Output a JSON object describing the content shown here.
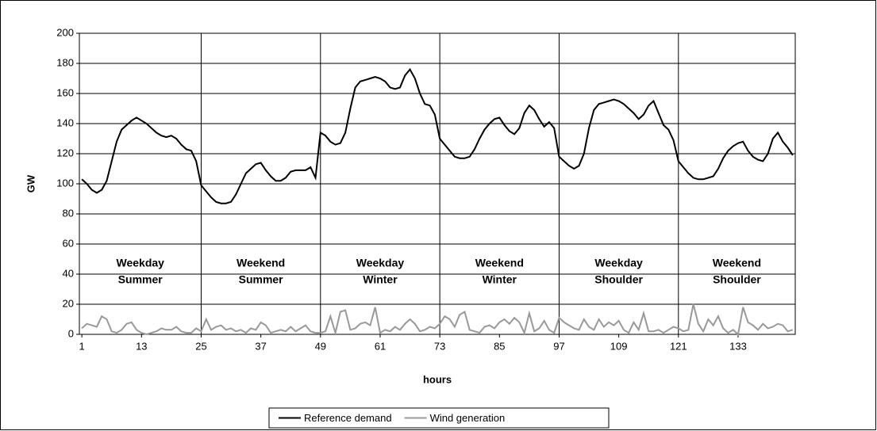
{
  "chart_data": {
    "type": "line",
    "xlabel": "hours",
    "ylabel": "GW",
    "x": [
      1,
      2,
      3,
      4,
      5,
      6,
      7,
      8,
      9,
      10,
      11,
      12,
      13,
      14,
      15,
      16,
      17,
      18,
      19,
      20,
      21,
      22,
      23,
      24,
      25,
      26,
      27,
      28,
      29,
      30,
      31,
      32,
      33,
      34,
      35,
      36,
      37,
      38,
      39,
      40,
      41,
      42,
      43,
      44,
      45,
      46,
      47,
      48,
      49,
      50,
      51,
      52,
      53,
      54,
      55,
      56,
      57,
      58,
      59,
      60,
      61,
      62,
      63,
      64,
      65,
      66,
      67,
      68,
      69,
      70,
      71,
      72,
      73,
      74,
      75,
      76,
      77,
      78,
      79,
      80,
      81,
      82,
      83,
      84,
      85,
      86,
      87,
      88,
      89,
      90,
      91,
      92,
      93,
      94,
      95,
      96,
      97,
      98,
      99,
      100,
      101,
      102,
      103,
      104,
      105,
      106,
      107,
      108,
      109,
      110,
      111,
      112,
      113,
      114,
      115,
      116,
      117,
      118,
      119,
      120,
      121,
      122,
      123,
      124,
      125,
      126,
      127,
      128,
      129,
      130,
      131,
      132,
      133,
      134,
      135,
      136,
      137,
      138,
      139,
      140,
      141,
      142,
      143,
      144
    ],
    "series": [
      {
        "name": "Reference demand",
        "color": "#000000",
        "values": [
          103,
          100,
          96,
          94,
          96,
          102,
          115,
          128,
          136,
          139,
          142,
          144,
          142,
          140,
          137,
          134,
          132,
          131,
          132,
          130,
          126,
          123,
          122,
          115,
          99,
          95,
          91,
          88,
          87,
          87,
          88,
          93,
          100,
          107,
          110,
          113,
          114,
          109,
          105,
          102,
          102,
          104,
          108,
          109,
          109,
          109,
          111,
          104,
          134,
          132,
          128,
          126,
          127,
          134,
          150,
          164,
          168,
          169,
          170,
          171,
          170,
          168,
          164,
          163,
          164,
          172,
          176,
          170,
          160,
          153,
          152,
          146,
          130,
          126,
          122,
          118,
          117,
          117,
          118,
          123,
          130,
          136,
          140,
          143,
          144,
          139,
          135,
          133,
          137,
          147,
          152,
          149,
          143,
          138,
          141,
          137,
          118,
          115,
          112,
          110,
          112,
          120,
          137,
          149,
          153,
          154,
          155,
          156,
          155,
          153,
          150,
          147,
          143,
          146,
          152,
          155,
          147,
          139,
          136,
          129,
          115,
          111,
          107,
          104,
          103,
          103,
          104,
          105,
          110,
          117,
          122,
          125,
          127,
          128,
          122,
          118,
          116,
          115,
          120,
          130,
          134,
          128,
          124,
          119
        ]
      },
      {
        "name": "Wind generation",
        "color": "#999999",
        "values": [
          4,
          7,
          6,
          5,
          12,
          10,
          2,
          1,
          3,
          7,
          8,
          3,
          1,
          0,
          1,
          2,
          4,
          3,
          3,
          5,
          2,
          1,
          1,
          4,
          2,
          10,
          3,
          5,
          6,
          3,
          4,
          2,
          3,
          1,
          4,
          3,
          8,
          6,
          1,
          2,
          3,
          2,
          5,
          2,
          4,
          6,
          2,
          1,
          1,
          2,
          12,
          1,
          15,
          16,
          3,
          4,
          7,
          8,
          6,
          18,
          1,
          3,
          2,
          5,
          3,
          7,
          10,
          7,
          2,
          3,
          5,
          4,
          7,
          12,
          10,
          5,
          13,
          15,
          3,
          2,
          1,
          5,
          6,
          4,
          8,
          10,
          7,
          11,
          8,
          1,
          14,
          2,
          4,
          9,
          3,
          1,
          11,
          8,
          6,
          4,
          3,
          10,
          5,
          3,
          10,
          5,
          8,
          6,
          9,
          3,
          1,
          8,
          3,
          14,
          2,
          2,
          3,
          1,
          3,
          5,
          4,
          2,
          3,
          20,
          7,
          2,
          10,
          6,
          12,
          4,
          1,
          3,
          0,
          18,
          8,
          6,
          3,
          7,
          4,
          5,
          7,
          6,
          2,
          3
        ]
      }
    ],
    "regions": [
      {
        "day": "Weekday",
        "season": "Summer",
        "start": 1
      },
      {
        "day": "Weekend",
        "season": "Summer",
        "start": 25
      },
      {
        "day": "Weekday",
        "season": "Winter",
        "start": 49
      },
      {
        "day": "Weekend",
        "season": "Winter",
        "start": 73
      },
      {
        "day": "Weekday",
        "season": "Shoulder",
        "start": 97
      },
      {
        "day": "Weekend",
        "season": "Shoulder",
        "start": 121
      }
    ],
    "xlim": [
      0.5,
      144.5
    ],
    "xticks": [
      1,
      13,
      25,
      37,
      49,
      61,
      73,
      85,
      97,
      109,
      121,
      133
    ],
    "ylim": [
      0,
      200
    ],
    "yticks": [
      0,
      20,
      40,
      60,
      80,
      100,
      120,
      140,
      160,
      180,
      200
    ],
    "grid": true,
    "legend": "bottom"
  }
}
